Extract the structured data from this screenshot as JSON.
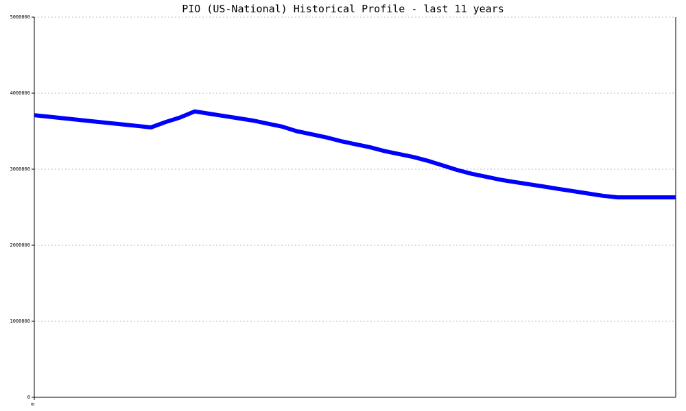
{
  "chart_data": {
    "type": "line",
    "title": "PIO (US-National) Historical Profile - last 11 years",
    "xlabel": "",
    "ylabel": "",
    "ylim": [
      0,
      5000000
    ],
    "yticks": [
      "0",
      "1000000",
      "2000000",
      "3000000",
      "4000000",
      "5000000"
    ],
    "xticks": [
      "0"
    ],
    "grid": true,
    "legend": "none",
    "colors": {
      "line": "#0000ff",
      "grid": "#bbbbbb",
      "axis": "#000000"
    },
    "series": [
      {
        "x": [
          0,
          1,
          2,
          3,
          4,
          5,
          6,
          7,
          8,
          9,
          10,
          11,
          12,
          13,
          14,
          15,
          16,
          17,
          18,
          19,
          20,
          21,
          22,
          23,
          24,
          25,
          26,
          27,
          28,
          29,
          30,
          31,
          32,
          33,
          34,
          35,
          36,
          37,
          38,
          39,
          40,
          41,
          42,
          43,
          44
        ],
        "values": [
          3710000,
          3690000,
          3670000,
          3650000,
          3630000,
          3610000,
          3590000,
          3570000,
          3550000,
          3620000,
          3680000,
          3760000,
          3730000,
          3700000,
          3670000,
          3640000,
          3600000,
          3560000,
          3500000,
          3460000,
          3420000,
          3370000,
          3330000,
          3290000,
          3240000,
          3200000,
          3160000,
          3110000,
          3050000,
          2990000,
          2940000,
          2900000,
          2860000,
          2830000,
          2800000,
          2770000,
          2740000,
          2710000,
          2680000,
          2650000,
          2630000,
          2630000,
          2630000,
          2630000,
          2630000
        ]
      }
    ]
  }
}
